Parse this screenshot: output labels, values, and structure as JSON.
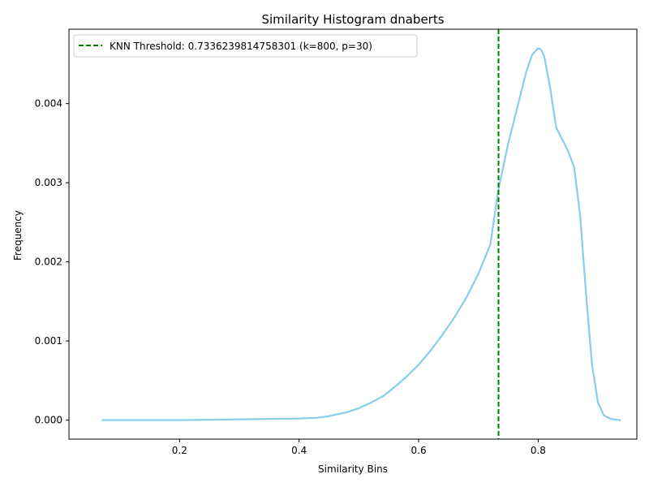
{
  "chart_data": {
    "type": "line",
    "title": "Similarity Histogram dnaberts",
    "xlabel": "Similarity Bins",
    "ylabel": "Frequency",
    "xlim": [
      0.015,
      0.965
    ],
    "ylim": [
      -0.00024,
      0.00494
    ],
    "xticks": [
      0.2,
      0.4,
      0.6,
      0.8
    ],
    "xtick_labels": [
      "0.2",
      "0.4",
      "0.6",
      "0.8"
    ],
    "yticks": [
      0.0,
      0.001,
      0.002,
      0.003,
      0.004
    ],
    "ytick_labels": [
      "0.000",
      "0.001",
      "0.002",
      "0.003",
      "0.004"
    ],
    "grid": false,
    "legend_position": "top-left",
    "series": [
      {
        "color": "#87ceeb",
        "x": [
          0.07,
          0.1,
          0.15,
          0.2,
          0.25,
          0.3,
          0.35,
          0.4,
          0.43,
          0.45,
          0.48,
          0.5,
          0.52,
          0.54,
          0.56,
          0.58,
          0.6,
          0.62,
          0.64,
          0.66,
          0.68,
          0.7,
          0.72,
          0.733,
          0.75,
          0.76,
          0.77,
          0.78,
          0.79,
          0.8,
          0.805,
          0.81,
          0.82,
          0.83,
          0.84,
          0.85,
          0.86,
          0.87,
          0.88,
          0.89,
          0.9,
          0.91,
          0.92,
          0.93,
          0.938
        ],
        "y": [
          0.0,
          0.0,
          0.0,
          0.0,
          5e-06,
          1e-05,
          1.5e-05,
          2e-05,
          3e-05,
          5e-05,
          0.0001,
          0.00015,
          0.00022,
          0.0003,
          0.00042,
          0.00055,
          0.0007,
          0.00088,
          0.00108,
          0.0013,
          0.00155,
          0.00185,
          0.00222,
          0.0029,
          0.0035,
          0.0038,
          0.0041,
          0.0044,
          0.00462,
          0.0047,
          0.00468,
          0.0046,
          0.0042,
          0.0037,
          0.00355,
          0.0034,
          0.0032,
          0.0026,
          0.0016,
          0.0007,
          0.00022,
          6e-05,
          2e-05,
          5e-06,
          0.0
        ]
      }
    ],
    "threshold": {
      "x": 0.7336239814758301,
      "color": "#008000",
      "label": "KNN Threshold: 0.7336239814758301 (k=800, p=30)"
    }
  }
}
